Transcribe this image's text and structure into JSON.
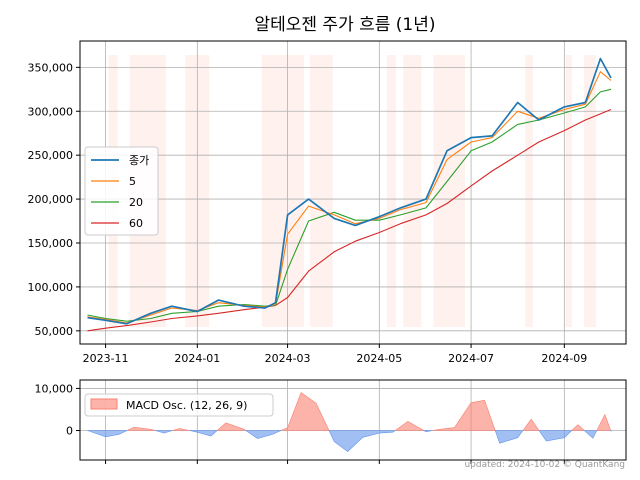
{
  "chart_data": [
    {
      "type": "line",
      "title": "알테오젠 주가 흐름 (1년)",
      "x_ticks": [
        "2023-11",
        "2024-01",
        "2024-03",
        "2024-05",
        "2024-07",
        "2024-09"
      ],
      "y_ticks": [
        "50,000",
        "100,000",
        "150,000",
        "200,000",
        "250,000",
        "300,000",
        "350,000"
      ],
      "ylim": [
        35000,
        380000
      ],
      "grid": true,
      "legend_placement": "center-left",
      "x": [
        "2023-10-20",
        "2023-11-01",
        "2023-11-15",
        "2023-12-01",
        "2023-12-15",
        "2024-01-01",
        "2024-01-15",
        "2024-02-01",
        "2024-02-15",
        "2024-02-22",
        "2024-03-01",
        "2024-03-15",
        "2024-04-01",
        "2024-04-15",
        "2024-05-01",
        "2024-05-15",
        "2024-06-01",
        "2024-06-15",
        "2024-07-01",
        "2024-07-15",
        "2024-08-01",
        "2024-08-15",
        "2024-09-01",
        "2024-09-15",
        "2024-09-25",
        "2024-10-02"
      ],
      "series": [
        {
          "name": "종가",
          "color": "#1f77b4",
          "values": [
            65000,
            62000,
            58000,
            70000,
            78000,
            72000,
            85000,
            78000,
            76000,
            82000,
            182000,
            200000,
            178000,
            170000,
            180000,
            190000,
            200000,
            255000,
            270000,
            272000,
            310000,
            290000,
            305000,
            310000,
            360000,
            338000
          ]
        },
        {
          "name": "5",
          "color": "#ff7f0e",
          "values": [
            66000,
            63000,
            59000,
            68000,
            76000,
            73000,
            82000,
            79000,
            77000,
            80000,
            160000,
            192000,
            182000,
            172000,
            178000,
            188000,
            196000,
            245000,
            265000,
            270000,
            300000,
            292000,
            302000,
            308000,
            345000,
            335000
          ]
        },
        {
          "name": "20",
          "color": "#2ca02c",
          "values": [
            68000,
            64000,
            61000,
            64000,
            70000,
            72000,
            78000,
            80000,
            78000,
            79000,
            120000,
            175000,
            185000,
            176000,
            176000,
            182000,
            190000,
            220000,
            255000,
            265000,
            285000,
            290000,
            298000,
            305000,
            322000,
            325000
          ]
        },
        {
          "name": "60",
          "color": "#d62728",
          "values": [
            50000,
            53000,
            56000,
            60000,
            64000,
            67000,
            70000,
            74000,
            77000,
            79000,
            88000,
            118000,
            140000,
            152000,
            162000,
            172000,
            182000,
            195000,
            215000,
            232000,
            250000,
            265000,
            278000,
            290000,
            297000,
            302000
          ]
        }
      ],
      "highlight_periods": [
        [
          "2023-11-03",
          "2023-11-09"
        ],
        [
          "2023-11-17",
          "2023-12-11"
        ],
        [
          "2023-12-24",
          "2024-01-09"
        ],
        [
          "2024-02-13",
          "2024-03-12"
        ],
        [
          "2024-03-16",
          "2024-03-31"
        ],
        [
          "2024-05-06",
          "2024-05-12"
        ],
        [
          "2024-05-17",
          "2024-05-29"
        ],
        [
          "2024-06-06",
          "2024-06-27"
        ],
        [
          "2024-08-06",
          "2024-08-11"
        ],
        [
          "2024-09-02",
          "2024-09-06"
        ],
        [
          "2024-09-14",
          "2024-09-22"
        ]
      ]
    },
    {
      "type": "area",
      "y_ticks": [
        "0",
        "10,000"
      ],
      "ylim": [
        -7000,
        12000
      ],
      "legend": "MACD Osc. (12, 26, 9)",
      "positive_color": "#fa8072",
      "negative_color": "#6495ed",
      "x": [
        "2023-10-20",
        "2023-11-01",
        "2023-11-10",
        "2023-11-20",
        "2023-12-01",
        "2023-12-10",
        "2023-12-20",
        "2024-01-01",
        "2024-01-10",
        "2024-01-20",
        "2024-02-01",
        "2024-02-10",
        "2024-02-20",
        "2024-03-01",
        "2024-03-10",
        "2024-03-20",
        "2024-04-01",
        "2024-04-10",
        "2024-04-20",
        "2024-05-01",
        "2024-05-10",
        "2024-05-20",
        "2024-06-01",
        "2024-06-10",
        "2024-06-20",
        "2024-07-01",
        "2024-07-10",
        "2024-07-20",
        "2024-08-01",
        "2024-08-10",
        "2024-08-20",
        "2024-09-01",
        "2024-09-10",
        "2024-09-20",
        "2024-09-28",
        "2024-10-02"
      ],
      "values": [
        0,
        -1500,
        -900,
        800,
        300,
        -600,
        500,
        -400,
        -1300,
        1800,
        300,
        -1900,
        -900,
        700,
        9000,
        6500,
        -2600,
        -5000,
        -1600,
        -600,
        -400,
        2200,
        -300,
        300,
        700,
        6600,
        7200,
        -3000,
        -1700,
        2700,
        -2500,
        -1700,
        1400,
        -1800,
        3800,
        -200
      ]
    }
  ],
  "footer": "updated: 2024-10-02 © QuantKang"
}
